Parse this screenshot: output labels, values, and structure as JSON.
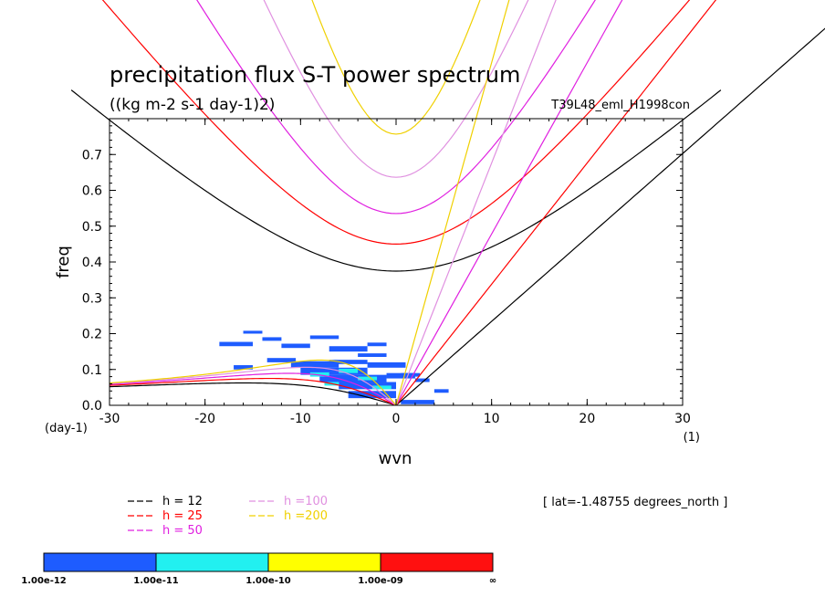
{
  "chart_data": {
    "type": "heatmap",
    "title": "precipitation flux S-T power spectrum",
    "subtitle": "((kg m-2 s-1 day-1)2)",
    "experiment": "T39L48_eml_H1998con",
    "latitude_label": "[ lat=-1.48755 degrees_north ]",
    "xlabel": "wvn",
    "ylabel": "freq",
    "x_unit": "(1)",
    "y_unit": "(day-1)",
    "xlim": [
      -30,
      30
    ],
    "ylim": [
      0,
      0.8
    ],
    "x_ticks": [
      -30,
      -20,
      -10,
      0,
      10,
      20,
      30
    ],
    "y_ticks": [
      0.0,
      0.1,
      0.2,
      0.3,
      0.4,
      0.5,
      0.6,
      0.7
    ],
    "colorbar": {
      "labels": [
        "1.00e-12",
        "1.00e-11",
        "1.00e-10",
        "1.00e-09",
        "∞"
      ],
      "colors": [
        "#1e5cff",
        "#22f0f0",
        "#ffff00",
        "#ff1010"
      ]
    },
    "dispersion_curves": [
      {
        "name": "h = 12",
        "h": 12,
        "color": "#000000"
      },
      {
        "name": "h = 25",
        "h": 25,
        "color": "#ff0000"
      },
      {
        "name": "h = 50",
        "h": 50,
        "color": "#e020e0"
      },
      {
        "name": "h =100",
        "h": 100,
        "color": "#e090e0"
      },
      {
        "name": "h =200",
        "h": 200,
        "color": "#f0d000"
      }
    ],
    "power_patches": [
      {
        "x": -18.5,
        "y": 0.165,
        "w": 3.5,
        "h": 0.012,
        "v": 1e-12
      },
      {
        "x": -16,
        "y": 0.2,
        "w": 2,
        "h": 0.008,
        "v": 1e-12
      },
      {
        "x": -14,
        "y": 0.18,
        "w": 2,
        "h": 0.01,
        "v": 1e-12
      },
      {
        "x": -12,
        "y": 0.16,
        "w": 3,
        "h": 0.012,
        "v": 1e-12
      },
      {
        "x": -9,
        "y": 0.185,
        "w": 3,
        "h": 0.01,
        "v": 1e-12
      },
      {
        "x": -7,
        "y": 0.15,
        "w": 4,
        "h": 0.015,
        "v": 1e-12
      },
      {
        "x": -3,
        "y": 0.165,
        "w": 2,
        "h": 0.01,
        "v": 1e-12
      },
      {
        "x": -4,
        "y": 0.135,
        "w": 3,
        "h": 0.01,
        "v": 1e-12
      },
      {
        "x": -17,
        "y": 0.1,
        "w": 2,
        "h": 0.012,
        "v": 1e-12
      },
      {
        "x": -13.5,
        "y": 0.12,
        "w": 3,
        "h": 0.012,
        "v": 1e-12
      },
      {
        "x": -11,
        "y": 0.105,
        "w": 5,
        "h": 0.018,
        "v": 1e-12
      },
      {
        "x": -10,
        "y": 0.085,
        "w": 7,
        "h": 0.02,
        "v": 1e-12
      },
      {
        "x": -8,
        "y": 0.065,
        "w": 7,
        "h": 0.02,
        "v": 1e-12
      },
      {
        "x": -6,
        "y": 0.045,
        "w": 6,
        "h": 0.02,
        "v": 1e-12
      },
      {
        "x": -5,
        "y": 0.02,
        "w": 5,
        "h": 0.02,
        "v": 1e-12
      },
      {
        "x": -7,
        "y": 0.115,
        "w": 4,
        "h": 0.012,
        "v": 1e-12
      },
      {
        "x": -3,
        "y": 0.105,
        "w": 4,
        "h": 0.015,
        "v": 1e-12
      },
      {
        "x": -1,
        "y": 0.075,
        "w": 3,
        "h": 0.015,
        "v": 1e-12
      },
      {
        "x": 0.5,
        "y": 0.08,
        "w": 2,
        "h": 0.01,
        "v": 1e-12
      },
      {
        "x": 2,
        "y": 0.065,
        "w": 1.5,
        "h": 0.01,
        "v": 1e-12
      },
      {
        "x": 0.5,
        "y": 0.003,
        "w": 3.5,
        "h": 0.012,
        "v": 1e-12
      },
      {
        "x": 4,
        "y": 0.035,
        "w": 1.5,
        "h": 0.01,
        "v": 1e-12
      },
      {
        "x": -9,
        "y": 0.08,
        "w": 2,
        "h": 0.012,
        "v": 1e-11
      },
      {
        "x": -6,
        "y": 0.09,
        "w": 2,
        "h": 0.012,
        "v": 1e-11
      },
      {
        "x": -4,
        "y": 0.07,
        "w": 2,
        "h": 0.01,
        "v": 1e-11
      },
      {
        "x": -2.5,
        "y": 0.045,
        "w": 2,
        "h": 0.01,
        "v": 1e-11
      },
      {
        "x": -7.5,
        "y": 0.055,
        "w": 1.5,
        "h": 0.01,
        "v": 1e-11
      }
    ]
  }
}
